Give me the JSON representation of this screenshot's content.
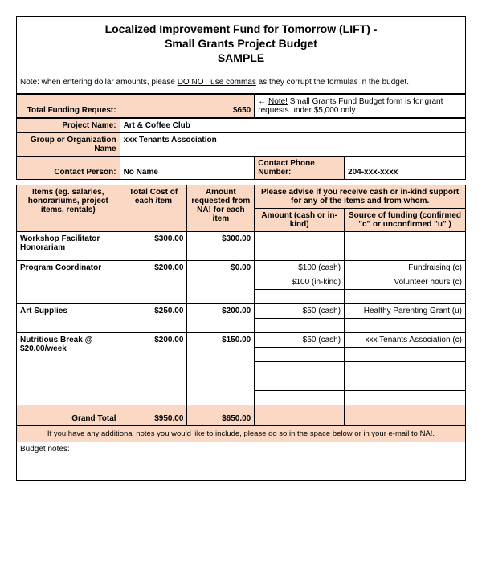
{
  "title": {
    "line1": "Localized Improvement Fund for Tomorrow (LIFT) -",
    "line2": "Small Grants Project Budget",
    "line3": "SAMPLE"
  },
  "note_text": "Note: when entering dollar amounts, please DO NOT use commas as they corrupt the formulas in the budget.",
  "note_prefix": "Note: when entering dollar amounts, please ",
  "note_underline": "DO NOT use commas",
  "note_suffix": " as they corrupt the formulas in the budget.",
  "funding": {
    "label": "Total Funding Request:",
    "amount": "$650",
    "side_note_arrow": "←",
    "side_note_u": "Note!",
    "side_note": " Small Grants Fund Budget form is for grant requests under $5,000 only."
  },
  "project": {
    "name_label": "Project Name:",
    "name_value": "Art & Coffee Club",
    "org_label": "Group or Organization Name",
    "org_value": "xxx Tenants Association",
    "contact_label": "Contact Person:",
    "contact_value": "No Name",
    "phone_label": "Contact Phone Number:",
    "phone_value": "204-xxx-xxxx"
  },
  "headers": {
    "items": "Items (eg. salaries, honorariums, project items, rentals)",
    "total_cost": "Total Cost of each item",
    "amount_req": "Amount requested from NA! for each item",
    "advise": "Please advise if you receive cash or in-kind support for any of the items and from whom.",
    "amount_cash": "Amount (cash or in-kind)",
    "source": "Source of funding (confirmed \"c\" or unconfirmed \"u\" )"
  },
  "rows": [
    {
      "item": "Workshop Facilitator Honorariam",
      "total": "$300.00",
      "req": "$300.00",
      "sub": [
        {
          "cash": "",
          "src": ""
        },
        {
          "cash": "",
          "src": ""
        }
      ]
    },
    {
      "item": "Program Coordinator",
      "total": "$200.00",
      "req": "$0.00",
      "sub": [
        {
          "cash": "$100 (cash)",
          "src": "Fundraising (c)"
        },
        {
          "cash": "$100 (in-kind)",
          "src": "Volunteer hours (c)"
        },
        {
          "cash": "",
          "src": ""
        }
      ]
    },
    {
      "item": "Art Supplies",
      "total": "$250.00",
      "req": "$200.00",
      "sub": [
        {
          "cash": "$50 (cash)",
          "src": "Healthy Parenting Grant (u)"
        },
        {
          "cash": "",
          "src": ""
        }
      ]
    },
    {
      "item": "Nutritious Break @ $20.00/week",
      "total": "$200.00",
      "req": "$150.00",
      "sub": [
        {
          "cash": "$50 (cash)",
          "src": "xxx Tenants Association (c)"
        },
        {
          "cash": "",
          "src": ""
        },
        {
          "cash": "",
          "src": ""
        },
        {
          "cash": "",
          "src": ""
        },
        {
          "cash": "",
          "src": ""
        }
      ]
    }
  ],
  "grand": {
    "label": "Grand Total",
    "total": "$950.00",
    "req": "$650.00"
  },
  "footer_note": "If you have any additional notes you would like to include, please do so in the space below or in your e-mail to NA!.",
  "budget_notes_label": "Budget notes:",
  "colors": {
    "peach": "#fad8c3",
    "border": "#000000",
    "bg": "#ffffff"
  },
  "col_widths_pct": [
    23,
    15,
    15,
    20,
    27
  ]
}
